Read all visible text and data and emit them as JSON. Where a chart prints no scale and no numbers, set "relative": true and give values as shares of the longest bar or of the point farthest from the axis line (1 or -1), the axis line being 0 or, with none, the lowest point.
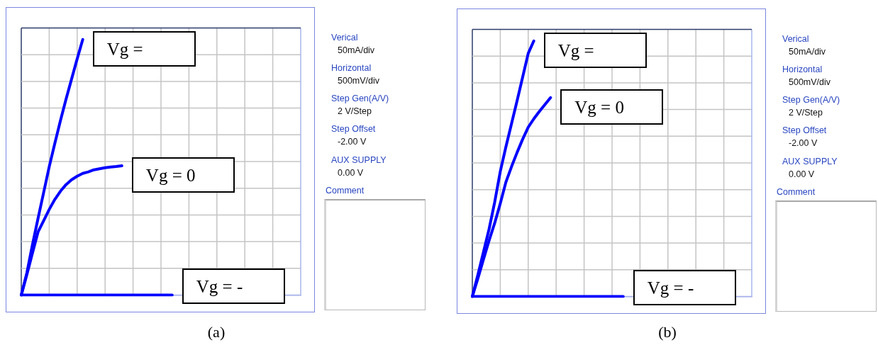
{
  "chart_data": [
    {
      "type": "line",
      "relative": true,
      "grid": true,
      "marker": "none",
      "line_style": "solid",
      "categories": [
        null,
        null,
        null,
        null,
        null,
        null,
        null,
        null,
        null,
        null,
        null,
        null,
        null,
        null,
        null,
        null,
        null,
        null,
        null,
        null,
        null,
        null,
        null,
        null,
        null,
        null,
        null,
        null,
        null,
        null,
        null,
        null,
        null,
        null,
        null,
        null,
        null,
        null,
        null,
        null,
        null,
        null,
        null,
        null,
        null,
        null,
        null,
        null,
        null,
        null,
        null
      ],
      "series": [
        {
          "name": "Vg =",
          "color": "#0000ff",
          "values": [
            0,
            0.087,
            0.197,
            0.3,
            0.401,
            0.502,
            0.593,
            0.682,
            0.766,
            0.845,
            0.924,
            1,
            null,
            null,
            null,
            null,
            null,
            null,
            null,
            null,
            null,
            null,
            null,
            null,
            null,
            null,
            null,
            null,
            null,
            null,
            null,
            null,
            null,
            null,
            null,
            null,
            null,
            null,
            null,
            null,
            null,
            null,
            null,
            null,
            null,
            null,
            null,
            null,
            null,
            null,
            null
          ]
        },
        {
          "name": "Vg = 0",
          "color": "#0000ff",
          "values": [
            0,
            0.08,
            0.164,
            0.247,
            0.291,
            0.335,
            0.374,
            0.406,
            0.432,
            0.451,
            0.465,
            0.476,
            0.482,
            0.49,
            0.494,
            0.498,
            0.501,
            0.503,
            0.506,
            null,
            null,
            null,
            null,
            null,
            null,
            null,
            null,
            null,
            null,
            null,
            null,
            null,
            null,
            null,
            null,
            null,
            null,
            null,
            null,
            null,
            null,
            null,
            null,
            null,
            null,
            null,
            null,
            null,
            null,
            null,
            null
          ]
        },
        {
          "name": "Vg = -",
          "color": "#0000ff",
          "values": [
            0,
            0,
            0,
            0,
            0,
            0,
            0,
            0,
            0,
            0,
            0,
            0,
            0,
            0,
            0,
            0,
            0,
            0,
            0,
            0,
            0,
            0,
            0,
            0,
            0,
            0,
            0,
            0,
            null,
            null,
            null,
            null,
            null,
            null,
            null,
            null,
            null,
            null,
            null,
            null,
            null,
            null,
            null,
            null,
            null,
            null,
            null,
            null,
            null,
            null,
            null
          ]
        }
      ],
      "annotations": [
        "Verical",
        "50mA/div",
        "Horizontal",
        "500mV/div",
        "Step Gen(A/V)",
        "2 V/Step",
        "Step Offset",
        "-2.00 V",
        "AUX SUPPLY",
        "0.00 V",
        "Comment",
        "(a)"
      ]
    },
    {
      "type": "line",
      "relative": true,
      "grid": true,
      "marker": "none",
      "line_style": "solid",
      "categories": [
        null,
        null,
        null,
        null,
        null,
        null,
        null,
        null,
        null,
        null,
        null,
        null,
        null,
        null,
        null,
        null,
        null,
        null,
        null,
        null,
        null,
        null,
        null,
        null,
        null,
        null,
        null,
        null,
        null,
        null,
        null,
        null,
        null,
        null,
        null,
        null,
        null,
        null,
        null,
        null,
        null,
        null,
        null,
        null,
        null,
        null,
        null,
        null,
        null,
        null,
        null
      ],
      "series": [
        {
          "name": "Vg =",
          "color": "#0000ff",
          "values": [
            0,
            0.085,
            0.175,
            0.264,
            0.369,
            0.489,
            0.585,
            0.675,
            0.765,
            0.858,
            0.951,
            1,
            null,
            null,
            null,
            null,
            null,
            null,
            null,
            null,
            null,
            null,
            null,
            null,
            null,
            null,
            null,
            null,
            null,
            null,
            null,
            null,
            null,
            null,
            null,
            null,
            null,
            null,
            null,
            null,
            null,
            null,
            null,
            null,
            null,
            null,
            null,
            null,
            null,
            null,
            null
          ]
        },
        {
          "name": "Vg = 0",
          "color": "#0000ff",
          "values": [
            0,
            0.071,
            0.146,
            0.219,
            0.287,
            0.364,
            0.447,
            0.507,
            0.563,
            0.615,
            0.662,
            0.695,
            0.724,
            0.751,
            0.778,
            null,
            null,
            null,
            null,
            null,
            null,
            null,
            null,
            null,
            null,
            null,
            null,
            null,
            null,
            null,
            null,
            null,
            null,
            null,
            null,
            null,
            null,
            null,
            null,
            null,
            null,
            null,
            null,
            null,
            null,
            null,
            null,
            null,
            null,
            null,
            null
          ]
        },
        {
          "name": "Vg = -",
          "color": "#0000ff",
          "values": [
            0,
            0,
            0,
            0,
            0,
            0,
            0,
            0,
            0,
            0,
            0,
            0,
            0,
            0,
            0,
            0,
            0,
            0,
            0,
            0,
            0,
            0,
            0,
            0,
            0,
            0,
            0,
            0,
            null,
            null,
            null,
            null,
            null,
            null,
            null,
            null,
            null,
            null,
            null,
            null,
            null,
            null,
            null,
            null,
            null,
            null,
            null,
            null,
            null,
            null,
            null
          ]
        }
      ],
      "annotations": [
        "Verical",
        "50mA/div",
        "Horizontal",
        "500mV/div",
        "Step Gen(A/V)",
        "2 V/Step",
        "Step Offset",
        "-2.00 V",
        "AUX SUPPLY",
        "0.00 V",
        "Comment",
        "(b)"
      ]
    }
  ]
}
